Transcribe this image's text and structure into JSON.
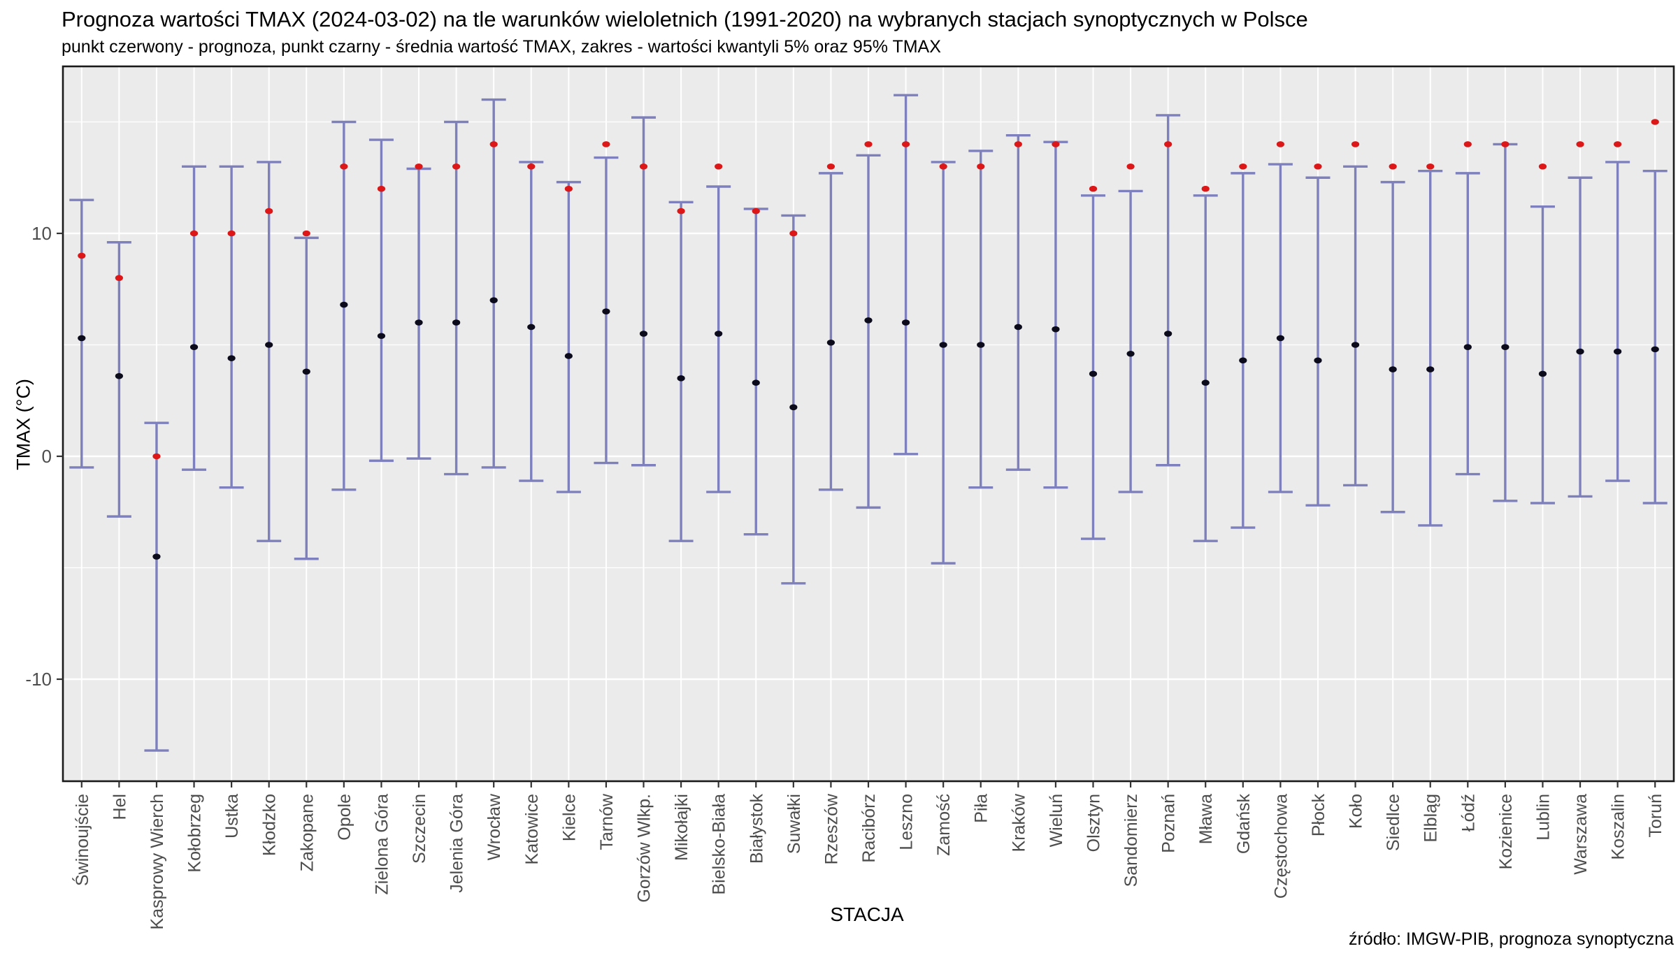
{
  "header": {
    "title": "Prognoza wartości TMAX (2024-03-02) na tle warunków wieloletnich (1991-2020) na wybranych stacjach synoptycznych w Polsce",
    "subtitle": "punkt czerwony - prognoza, punkt czarny - średnia wartość TMAX, zakres - wartości kwantyli 5% oraz 95% TMAX"
  },
  "footer": {
    "source": "źródło: IMGW-PIB, prognoza synoptyczna"
  },
  "chart_data": {
    "type": "scatter",
    "subtype": "points-with-quantile-errorbars",
    "title": "Prognoza wartości TMAX (2024-03-02) na tle warunków wieloletnich (1991-2020) na wybranych stacjach synoptycznych w Polsce",
    "subtitle": "punkt czerwony - prognoza, punkt czarny - średnia wartość TMAX, zakres - wartości kwantyli 5% oraz 95% TMAX",
    "xlabel": "STACJA",
    "ylabel": "TMAX (°C)",
    "ylim": [
      -14.6,
      17.5
    ],
    "y_major_ticks": [
      10,
      0,
      -10
    ],
    "y_minor_gridlines": [
      15,
      5,
      -5
    ],
    "grid": "on",
    "legend_position": "none",
    "series_meaning": {
      "forecast": "prognoza (punkt czerwony)",
      "mean": "średnia wartość TMAX (punkt czarny)",
      "q05": "kwantyl 5% TMAX (dolny koniec zakresu)",
      "q95": "kwantyl 95% TMAX (górny koniec zakresu)"
    },
    "colors": {
      "forecast_point": "#dd1717",
      "mean_point": "#0b0b1c",
      "errorbar": "#7d80bd",
      "panel_background": "#ebebeb",
      "gridline": "#ffffff",
      "panel_border": "#1a1a1a",
      "axis_text": "#4d4d4d"
    },
    "stations": [
      {
        "name": "Świnoujście",
        "forecast": 9,
        "mean": 5.3,
        "q05": -0.5,
        "q95": 11.5
      },
      {
        "name": "Hel",
        "forecast": 8,
        "mean": 3.6,
        "q05": -2.7,
        "q95": 9.6
      },
      {
        "name": "Kasprowy Wierch",
        "forecast": 0,
        "mean": -4.5,
        "q05": -13.2,
        "q95": 1.5
      },
      {
        "name": "Kołobrzeg",
        "forecast": 10,
        "mean": 4.9,
        "q05": -0.6,
        "q95": 13.0
      },
      {
        "name": "Ustka",
        "forecast": 10,
        "mean": 4.4,
        "q05": -1.4,
        "q95": 13.0
      },
      {
        "name": "Kłodzko",
        "forecast": 11,
        "mean": 5.0,
        "q05": -3.8,
        "q95": 13.2
      },
      {
        "name": "Zakopane",
        "forecast": 10,
        "mean": 3.8,
        "q05": -4.6,
        "q95": 9.8
      },
      {
        "name": "Opole",
        "forecast": 13,
        "mean": 6.8,
        "q05": -1.5,
        "q95": 15.0
      },
      {
        "name": "Zielona Góra",
        "forecast": 12,
        "mean": 5.4,
        "q05": -0.2,
        "q95": 14.2
      },
      {
        "name": "Szczecin",
        "forecast": 13,
        "mean": 6.0,
        "q05": -0.1,
        "q95": 12.9
      },
      {
        "name": "Jelenia Góra",
        "forecast": 13,
        "mean": 6.0,
        "q05": -0.8,
        "q95": 15.0
      },
      {
        "name": "Wrocław",
        "forecast": 14,
        "mean": 7.0,
        "q05": -0.5,
        "q95": 16.0
      },
      {
        "name": "Katowice",
        "forecast": 13,
        "mean": 5.8,
        "q05": -1.1,
        "q95": 13.2
      },
      {
        "name": "Kielce",
        "forecast": 12,
        "mean": 4.5,
        "q05": -1.6,
        "q95": 12.3
      },
      {
        "name": "Tarnów",
        "forecast": 14,
        "mean": 6.5,
        "q05": -0.3,
        "q95": 13.4
      },
      {
        "name": "Gorzów Wlkp.",
        "forecast": 13,
        "mean": 5.5,
        "q05": -0.4,
        "q95": 15.2
      },
      {
        "name": "Mikołajki",
        "forecast": 11,
        "mean": 3.5,
        "q05": -3.8,
        "q95": 11.4
      },
      {
        "name": "Bielsko-Biała",
        "forecast": 13,
        "mean": 5.5,
        "q05": -1.6,
        "q95": 12.1
      },
      {
        "name": "Białystok",
        "forecast": 11,
        "mean": 3.3,
        "q05": -3.5,
        "q95": 11.1
      },
      {
        "name": "Suwałki",
        "forecast": 10,
        "mean": 2.2,
        "q05": -5.7,
        "q95": 10.8
      },
      {
        "name": "Rzeszów",
        "forecast": 13,
        "mean": 5.1,
        "q05": -1.5,
        "q95": 12.7
      },
      {
        "name": "Racibórz",
        "forecast": 14,
        "mean": 6.1,
        "q05": -2.3,
        "q95": 13.5
      },
      {
        "name": "Leszno",
        "forecast": 14,
        "mean": 6.0,
        "q05": 0.1,
        "q95": 16.2
      },
      {
        "name": "Zamość",
        "forecast": 13,
        "mean": 5.0,
        "q05": -4.8,
        "q95": 13.2
      },
      {
        "name": "Piła",
        "forecast": 13,
        "mean": 5.0,
        "q05": -1.4,
        "q95": 13.7
      },
      {
        "name": "Kraków",
        "forecast": 14,
        "mean": 5.8,
        "q05": -0.6,
        "q95": 14.4
      },
      {
        "name": "Wieluń",
        "forecast": 14,
        "mean": 5.7,
        "q05": -1.4,
        "q95": 14.1
      },
      {
        "name": "Olsztyn",
        "forecast": 12,
        "mean": 3.7,
        "q05": -3.7,
        "q95": 11.7
      },
      {
        "name": "Sandomierz",
        "forecast": 13,
        "mean": 4.6,
        "q05": -1.6,
        "q95": 11.9
      },
      {
        "name": "Poznań",
        "forecast": 14,
        "mean": 5.5,
        "q05": -0.4,
        "q95": 15.3
      },
      {
        "name": "Mława",
        "forecast": 12,
        "mean": 3.3,
        "q05": -3.8,
        "q95": 11.7
      },
      {
        "name": "Gdańsk",
        "forecast": 13,
        "mean": 4.3,
        "q05": -3.2,
        "q95": 12.7
      },
      {
        "name": "Częstochowa",
        "forecast": 14,
        "mean": 5.3,
        "q05": -1.6,
        "q95": 13.1
      },
      {
        "name": "Płock",
        "forecast": 13,
        "mean": 4.3,
        "q05": -2.2,
        "q95": 12.5
      },
      {
        "name": "Koło",
        "forecast": 14,
        "mean": 5.0,
        "q05": -1.3,
        "q95": 13.0
      },
      {
        "name": "Siedlce",
        "forecast": 13,
        "mean": 3.9,
        "q05": -2.5,
        "q95": 12.3
      },
      {
        "name": "Elbląg",
        "forecast": 13,
        "mean": 3.9,
        "q05": -3.1,
        "q95": 12.8
      },
      {
        "name": "Łódź",
        "forecast": 14,
        "mean": 4.9,
        "q05": -0.8,
        "q95": 12.7
      },
      {
        "name": "Kozienice",
        "forecast": 14,
        "mean": 4.9,
        "q05": -2.0,
        "q95": 14.0
      },
      {
        "name": "Lublin",
        "forecast": 13,
        "mean": 3.7,
        "q05": -2.1,
        "q95": 11.2
      },
      {
        "name": "Warszawa",
        "forecast": 14,
        "mean": 4.7,
        "q05": -1.8,
        "q95": 12.5
      },
      {
        "name": "Koszalin",
        "forecast": 14,
        "mean": 4.7,
        "q05": -1.1,
        "q95": 13.2
      },
      {
        "name": "Toruń",
        "forecast": 15,
        "mean": 4.8,
        "q05": -2.1,
        "q95": 12.8
      }
    ]
  }
}
